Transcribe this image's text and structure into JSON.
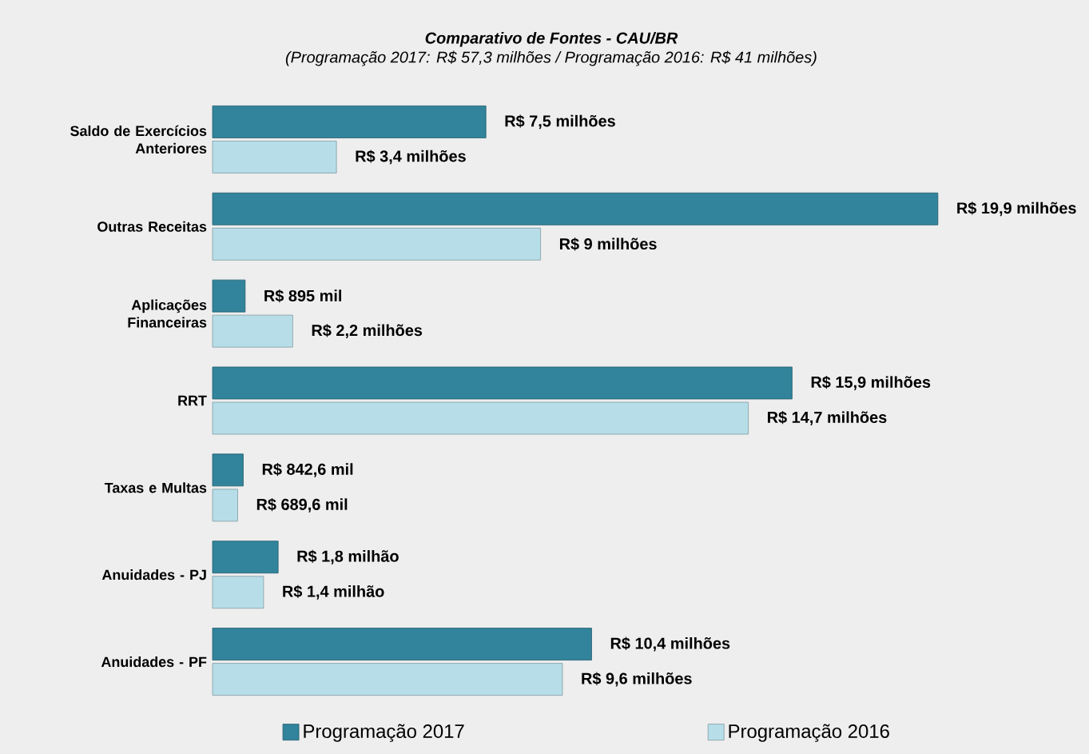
{
  "chart_data": {
    "type": "bar",
    "orientation": "horizontal",
    "title": "Comparativo de Fontes - CAU/BR",
    "subtitle": "(Programação 2017: R$ 57,3 milhões / Programação 2016: R$ 41 milhões)",
    "categories": [
      "Saldo de Exercícios Anteriores",
      "Outras Receitas",
      "Aplicações Financeiras",
      "RRT",
      "Taxas e Multas",
      "Anuidades - PJ",
      "Anuidades - PF"
    ],
    "series": [
      {
        "name": "Programação 2017",
        "color": "#31849b",
        "values": [
          7.5,
          19.9,
          0.895,
          15.9,
          0.8426,
          1.8,
          10.4
        ],
        "value_labels": [
          "R$ 7,5 milhões",
          "R$ 19,9 milhões",
          "R$ 895 mil",
          "R$ 15,9 milhões",
          "R$ 842,6 mil",
          "R$ 1,8 milhão",
          "R$ 10,4 milhões"
        ]
      },
      {
        "name": "Programação 2016",
        "color": "#b7dee8",
        "values": [
          3.4,
          9,
          2.2,
          14.7,
          0.6896,
          1.4,
          9.6
        ],
        "value_labels": [
          "R$ 3,4 milhões",
          "R$ 9 milhões",
          "R$ 2,2  milhões",
          "R$ 14,7 milhões",
          "R$ 689,6 mil",
          "R$ 1,4 milhão",
          "R$ 9,6 milhões"
        ]
      }
    ],
    "legend": "bottom"
  }
}
